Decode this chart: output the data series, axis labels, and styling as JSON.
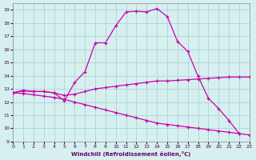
{
  "bg_color": "#d6f0ef",
  "grid_color": "#b0d8d8",
  "line_color": "#cc00aa",
  "xlabel": "Windchill (Refroidissement éolien,°C)",
  "xlim": [
    0,
    23
  ],
  "ylim": [
    9,
    19.5
  ],
  "yticks": [
    9,
    10,
    11,
    12,
    13,
    14,
    15,
    16,
    17,
    18,
    19
  ],
  "xticks": [
    0,
    1,
    2,
    3,
    4,
    5,
    6,
    7,
    8,
    9,
    10,
    11,
    12,
    13,
    14,
    15,
    16,
    17,
    18,
    19,
    20,
    21,
    22,
    23
  ],
  "line1_x": [
    0,
    1,
    2,
    3,
    4,
    5,
    6,
    7,
    8,
    9,
    10,
    11,
    12,
    13,
    14,
    15,
    16,
    17,
    18,
    19,
    20,
    21,
    22
  ],
  "line1_y": [
    12.7,
    12.9,
    12.8,
    12.8,
    12.7,
    12.1,
    13.5,
    14.3,
    16.5,
    16.5,
    17.8,
    18.85,
    18.9,
    18.85,
    19.1,
    18.5,
    16.6,
    15.85,
    13.95,
    12.3,
    11.5,
    10.6,
    9.6
  ],
  "line2_x": [
    0,
    1,
    2,
    3,
    4,
    5,
    6,
    7,
    8,
    9,
    10,
    11,
    12,
    13,
    14,
    15,
    16,
    17,
    18,
    19,
    20,
    21,
    22,
    23
  ],
  "line2_y": [
    12.7,
    12.85,
    12.8,
    12.8,
    12.7,
    12.5,
    12.6,
    12.8,
    13.0,
    13.1,
    13.2,
    13.3,
    13.4,
    13.5,
    13.6,
    13.6,
    13.65,
    13.7,
    13.75,
    13.8,
    13.85,
    13.9,
    13.9,
    13.9
  ],
  "line3_x": [
    0,
    1,
    2,
    3,
    4,
    5,
    6,
    7,
    8,
    9,
    10,
    11,
    12,
    13,
    14,
    15,
    16,
    17,
    18,
    19,
    20,
    21,
    22,
    23
  ],
  "line3_y": [
    12.7,
    12.65,
    12.55,
    12.45,
    12.35,
    12.2,
    12.0,
    11.8,
    11.6,
    11.4,
    11.2,
    11.0,
    10.8,
    10.6,
    10.4,
    10.3,
    10.2,
    10.1,
    10.0,
    9.9,
    9.8,
    9.7,
    9.6,
    9.5
  ]
}
